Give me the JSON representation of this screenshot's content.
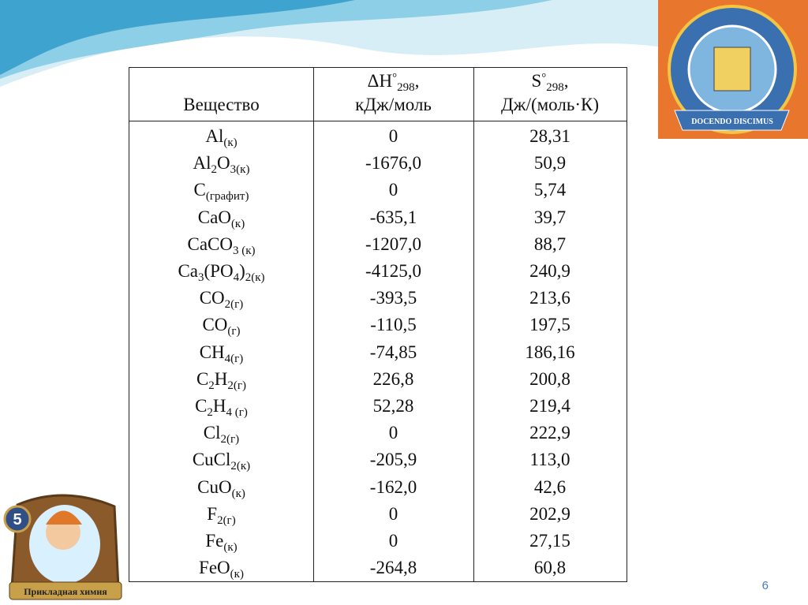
{
  "table": {
    "header": [
      [
        {
          "text": "Вещество"
        }
      ],
      [
        {
          "text": "ΔH"
        },
        {
          "text": "°",
          "pos": "sup"
        },
        {
          "text": "298",
          "pos": "sub"
        },
        {
          "text": ","
        },
        {
          "text": "кДж/моль",
          "pos": "line"
        }
      ],
      [
        {
          "text": "S"
        },
        {
          "text": "°",
          "pos": "sup"
        },
        {
          "text": "298",
          "pos": "sub"
        },
        {
          "text": ","
        },
        {
          "text": "Дж/(моль·К)",
          "pos": "line"
        }
      ]
    ],
    "rows": [
      {
        "substance": [
          {
            "text": "Al"
          },
          {
            "text": "(к)",
            "pos": "sub"
          }
        ],
        "dh": "0",
        "s": "28,31"
      },
      {
        "substance": [
          {
            "text": "Al"
          },
          {
            "text": "2",
            "pos": "sub"
          },
          {
            "text": "O"
          },
          {
            "text": "3(к)",
            "pos": "sub"
          }
        ],
        "dh": "-1676,0",
        "s": "50,9"
      },
      {
        "substance": [
          {
            "text": "C"
          },
          {
            "text": "(графит)",
            "pos": "sub"
          }
        ],
        "dh": "0",
        "s": "5,74"
      },
      {
        "substance": [
          {
            "text": "CaO"
          },
          {
            "text": "(к)",
            "pos": "sub"
          }
        ],
        "dh": "-635,1",
        "s": "39,7"
      },
      {
        "substance": [
          {
            "text": "CaCO"
          },
          {
            "text": "3 (к)",
            "pos": "sub"
          }
        ],
        "dh": "-1207,0",
        "s": "88,7"
      },
      {
        "substance": [
          {
            "text": "Ca"
          },
          {
            "text": "3",
            "pos": "sub"
          },
          {
            "text": "(PO"
          },
          {
            "text": "4",
            "pos": "sub"
          },
          {
            "text": ")"
          },
          {
            "text": "2(к)",
            "pos": "sub"
          }
        ],
        "dh": "-4125,0",
        "s": "240,9"
      },
      {
        "substance": [
          {
            "text": "CO"
          },
          {
            "text": "2(г)",
            "pos": "sub"
          }
        ],
        "dh": "-393,5",
        "s": "213,6"
      },
      {
        "substance": [
          {
            "text": "CO"
          },
          {
            "text": "(г)",
            "pos": "sub"
          }
        ],
        "dh": "-110,5",
        "s": "197,5"
      },
      {
        "substance": [
          {
            "text": "CH"
          },
          {
            "text": "4(г)",
            "pos": "sub"
          }
        ],
        "dh": "-74,85",
        "s": "186,16"
      },
      {
        "substance": [
          {
            "text": "C"
          },
          {
            "text": "2",
            "pos": "sub"
          },
          {
            "text": "H"
          },
          {
            "text": "2(г)",
            "pos": "sub"
          }
        ],
        "dh": "226,8",
        "s": "200,8"
      },
      {
        "substance": [
          {
            "text": "C"
          },
          {
            "text": "2",
            "pos": "sub"
          },
          {
            "text": "H"
          },
          {
            "text": "4 (г)",
            "pos": "sub"
          }
        ],
        "dh": "52,28",
        "s": "219,4"
      },
      {
        "substance": [
          {
            "text": "Cl"
          },
          {
            "text": "2(г)",
            "pos": "sub"
          }
        ],
        "dh": "0",
        "s": "222,9"
      },
      {
        "substance": [
          {
            "text": "CuCl"
          },
          {
            "text": "2(к)",
            "pos": "sub"
          }
        ],
        "dh": "-205,9",
        "s": "113,0"
      },
      {
        "substance": [
          {
            "text": "CuO"
          },
          {
            "text": "(к)",
            "pos": "sub"
          }
        ],
        "dh": "-162,0",
        "s": "42,6"
      },
      {
        "substance": [
          {
            "text": "F"
          },
          {
            "text": "2(г)",
            "pos": "sub"
          }
        ],
        "dh": "0",
        "s": "202,9"
      },
      {
        "substance": [
          {
            "text": "Fe"
          },
          {
            "text": "(к)",
            "pos": "sub"
          }
        ],
        "dh": "0",
        "s": "27,15"
      },
      {
        "substance": [
          {
            "text": "FeO"
          },
          {
            "text": "(к)",
            "pos": "sub"
          }
        ],
        "dh": "-264,8",
        "s": "60,8"
      }
    ]
  },
  "logo": {
    "motto": "DOCENDO DISCIMUS"
  },
  "card": {
    "level": "5",
    "caption": "Прикладная химия"
  },
  "slide_number": "6"
}
